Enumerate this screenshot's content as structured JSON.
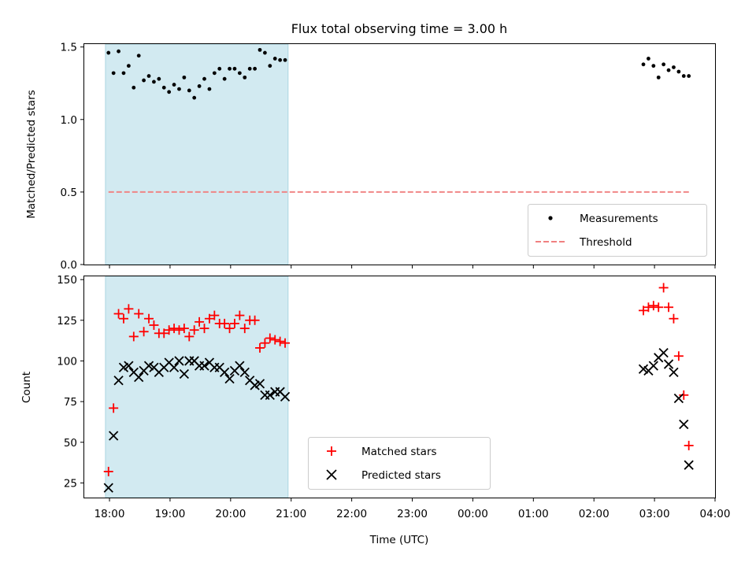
{
  "chart_data": [
    {
      "type": "scatter",
      "title": "Flux total observing time = 3.00 h",
      "xlabel": "",
      "ylabel": "Matched/Predicted stars",
      "ylim": [
        0,
        1.52
      ],
      "xlim": [
        "17:35",
        "04:00"
      ],
      "yticks": [
        "0.0",
        "0.5",
        "1.0",
        "1.5"
      ],
      "shaded_interval": [
        "17:56",
        "20:57"
      ],
      "shade_color": "#add8e6",
      "legend": {
        "position": "bottom-right",
        "entries": [
          "Measurements",
          "Threshold"
        ]
      },
      "series": [
        {
          "name": "Measurements",
          "marker": "dot",
          "color": "#000000",
          "x": [
            "17:59",
            "18:04",
            "18:09",
            "18:14",
            "18:19",
            "18:24",
            "18:29",
            "18:34",
            "18:39",
            "18:44",
            "18:49",
            "18:54",
            "18:59",
            "19:04",
            "19:09",
            "19:14",
            "19:19",
            "19:24",
            "19:29",
            "19:34",
            "19:39",
            "19:44",
            "19:49",
            "19:54",
            "19:59",
            "20:04",
            "20:09",
            "20:14",
            "20:19",
            "20:24",
            "20:29",
            "20:34",
            "20:39",
            "20:44",
            "20:49",
            "20:54",
            "02:49",
            "02:54",
            "02:59",
            "03:04",
            "03:09",
            "03:14",
            "03:19",
            "03:24",
            "03:29",
            "03:34"
          ],
          "y": [
            1.46,
            1.32,
            1.47,
            1.32,
            1.37,
            1.22,
            1.44,
            1.27,
            1.3,
            1.26,
            1.28,
            1.22,
            1.19,
            1.24,
            1.21,
            1.29,
            1.2,
            1.15,
            1.23,
            1.28,
            1.21,
            1.32,
            1.35,
            1.28,
            1.35,
            1.35,
            1.32,
            1.29,
            1.35,
            1.35,
            1.48,
            1.46,
            1.37,
            1.42,
            1.41,
            1.41,
            1.38,
            1.42,
            1.37,
            1.29,
            1.38,
            1.34,
            1.36,
            1.33,
            1.3,
            1.3
          ]
        },
        {
          "name": "Threshold",
          "style": "dashed",
          "color": "#f08080",
          "x": [
            "17:59",
            "03:35"
          ],
          "y": [
            0.5,
            0.5
          ]
        }
      ]
    },
    {
      "type": "scatter",
      "title": "",
      "xlabel": "Time (UTC)",
      "ylabel": "Count",
      "ylim": [
        16,
        152
      ],
      "xlim": [
        "17:35",
        "04:00"
      ],
      "yticks": [
        "25",
        "50",
        "75",
        "100",
        "125",
        "150"
      ],
      "xticks": [
        "18:00",
        "19:00",
        "20:00",
        "21:00",
        "22:00",
        "23:00",
        "00:00",
        "01:00",
        "02:00",
        "03:00",
        "04:00"
      ],
      "shaded_interval": [
        "17:56",
        "20:57"
      ],
      "shade_color": "#add8e6",
      "legend": {
        "position": "bottom-center",
        "entries": [
          "Matched stars",
          "Predicted stars"
        ]
      },
      "series": [
        {
          "name": "Matched stars",
          "marker": "plus",
          "color": "#ff0000",
          "x": [
            "17:59",
            "18:04",
            "18:09",
            "18:14",
            "18:19",
            "18:24",
            "18:29",
            "18:34",
            "18:39",
            "18:44",
            "18:49",
            "18:54",
            "18:59",
            "19:04",
            "19:09",
            "19:14",
            "19:19",
            "19:24",
            "19:29",
            "19:34",
            "19:39",
            "19:44",
            "19:49",
            "19:54",
            "19:59",
            "20:04",
            "20:09",
            "20:14",
            "20:19",
            "20:24",
            "20:29",
            "20:34",
            "20:39",
            "20:44",
            "20:49",
            "20:54",
            "02:49",
            "02:54",
            "02:59",
            "03:04",
            "03:09",
            "03:14",
            "03:19",
            "03:24",
            "03:29",
            "03:34"
          ],
          "y": [
            32,
            71,
            129,
            126,
            132,
            115,
            129,
            118,
            126,
            122,
            117,
            117,
            119,
            120,
            119,
            120,
            115,
            119,
            124,
            120,
            126,
            128,
            123,
            123,
            120,
            123,
            128,
            120,
            125,
            125,
            108,
            111,
            114,
            113,
            112,
            111,
            131,
            133,
            134,
            133,
            145,
            133,
            126,
            103,
            79,
            48
          ]
        },
        {
          "name": "Predicted stars",
          "marker": "x",
          "color": "#000000",
          "x": [
            "17:59",
            "18:04",
            "18:09",
            "18:14",
            "18:19",
            "18:24",
            "18:29",
            "18:34",
            "18:39",
            "18:44",
            "18:49",
            "18:54",
            "18:59",
            "19:04",
            "19:09",
            "19:14",
            "19:19",
            "19:24",
            "19:29",
            "19:34",
            "19:39",
            "19:44",
            "19:49",
            "19:54",
            "19:59",
            "20:04",
            "20:09",
            "20:14",
            "20:19",
            "20:24",
            "20:29",
            "20:34",
            "20:39",
            "20:44",
            "20:49",
            "20:54",
            "02:49",
            "02:54",
            "02:59",
            "03:04",
            "03:09",
            "03:14",
            "03:19",
            "03:24",
            "03:29",
            "03:34"
          ],
          "y": [
            22,
            54,
            88,
            96,
            97,
            93,
            90,
            94,
            97,
            96,
            93,
            96,
            99,
            96,
            100,
            92,
            100,
            100,
            97,
            97,
            99,
            96,
            96,
            93,
            89,
            94,
            97,
            93,
            88,
            85,
            86,
            79,
            79,
            81,
            81,
            78,
            95,
            94,
            97,
            102,
            105,
            98,
            93,
            77,
            61,
            36
          ]
        }
      ]
    }
  ]
}
